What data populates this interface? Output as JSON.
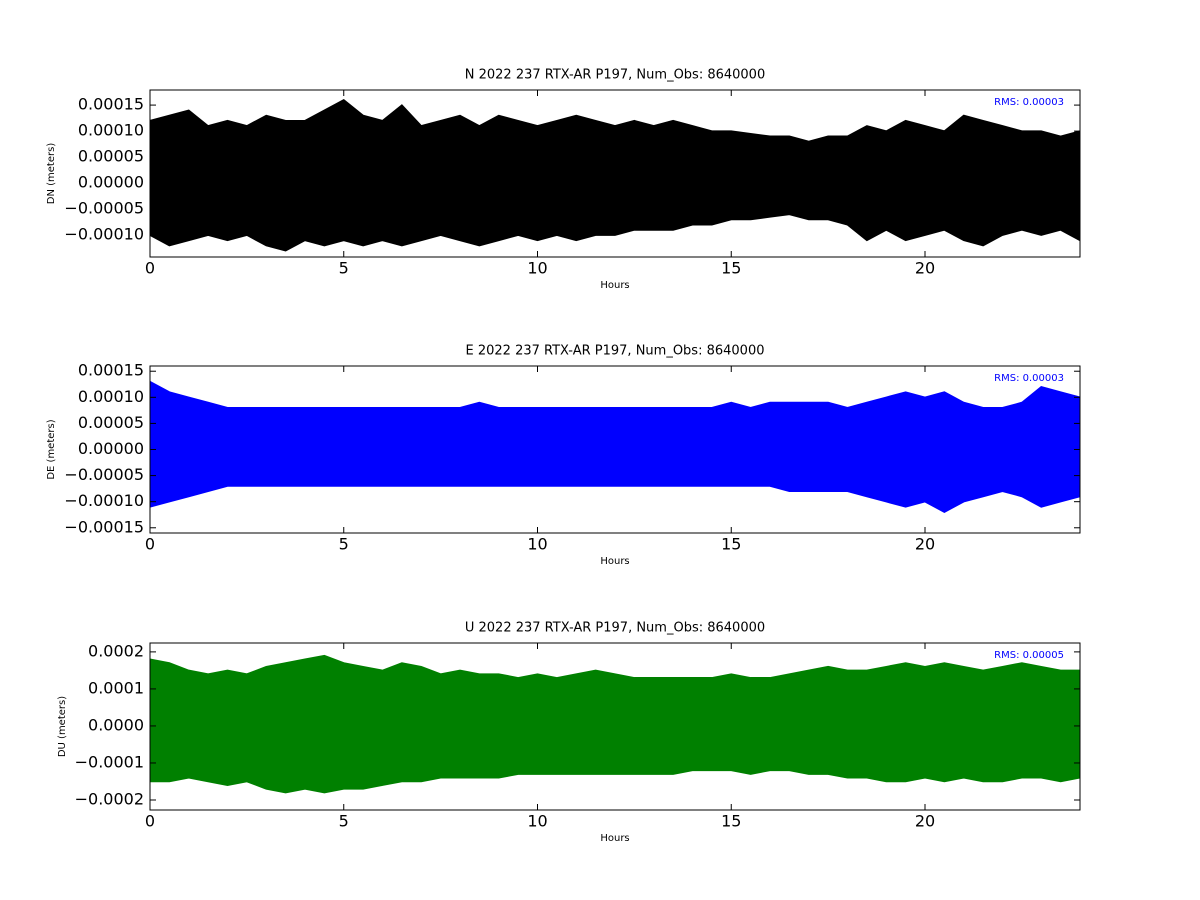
{
  "chart_data": [
    {
      "type": "area",
      "title": "N 2022 237 RTX-AR  P197, Num_Obs: 8640000",
      "xlabel": "Hours",
      "ylabel": "DN (meters)",
      "annotation": "RMS:  0.00003",
      "annotation_color": "#0000ff",
      "color": "#000000",
      "x": [
        0,
        0.5,
        1,
        1.5,
        2,
        2.5,
        3,
        3.5,
        4,
        4.5,
        5,
        5.5,
        6,
        6.5,
        7,
        7.5,
        8,
        8.5,
        9,
        9.5,
        10,
        10.5,
        11,
        11.5,
        12,
        12.5,
        13,
        13.5,
        14,
        14.5,
        15,
        15.5,
        16,
        16.5,
        17,
        17.5,
        18,
        18.5,
        19,
        19.5,
        20,
        20.5,
        21,
        21.5,
        22,
        22.5,
        23,
        23.5,
        24
      ],
      "upper": [
        0.00012,
        0.00013,
        0.00014,
        0.00011,
        0.00012,
        0.00011,
        0.00013,
        0.00012,
        0.00012,
        0.00014,
        0.00016,
        0.00013,
        0.00012,
        0.00015,
        0.00011,
        0.00012,
        0.00013,
        0.00011,
        0.00013,
        0.00012,
        0.00011,
        0.00012,
        0.00013,
        0.00012,
        0.00011,
        0.00012,
        0.00011,
        0.00012,
        0.00011,
        0.0001,
        0.0001,
        9.5e-05,
        9e-05,
        9e-05,
        8e-05,
        9e-05,
        9e-05,
        0.00011,
        0.0001,
        0.00012,
        0.00011,
        0.0001,
        0.00013,
        0.00012,
        0.00011,
        0.0001,
        0.0001,
        9e-05,
        0.0001
      ],
      "lower": [
        -0.0001,
        -0.00012,
        -0.00011,
        -0.0001,
        -0.00011,
        -0.0001,
        -0.00012,
        -0.00013,
        -0.00011,
        -0.00012,
        -0.00011,
        -0.00012,
        -0.00011,
        -0.00012,
        -0.00011,
        -0.0001,
        -0.00011,
        -0.00012,
        -0.00011,
        -0.0001,
        -0.00011,
        -0.0001,
        -0.00011,
        -0.0001,
        -0.0001,
        -9e-05,
        -9e-05,
        -9e-05,
        -8e-05,
        -8e-05,
        -7e-05,
        -7e-05,
        -6.5e-05,
        -6e-05,
        -7e-05,
        -7e-05,
        -8e-05,
        -0.00011,
        -9e-05,
        -0.00011,
        -0.0001,
        -9e-05,
        -0.00011,
        -0.00012,
        -0.0001,
        -9e-05,
        -0.0001,
        -9e-05,
        -0.00011
      ],
      "xlim": [
        0,
        24
      ],
      "ylim": [
        -0.000142,
        0.000179
      ],
      "xticks": [
        0,
        5,
        10,
        15,
        20
      ],
      "yticks": [
        {
          "value": -0.0001,
          "label": "−0.00010"
        },
        {
          "value": -5e-05,
          "label": "−0.00005"
        },
        {
          "value": 0,
          "label": "0.00000"
        },
        {
          "value": 5e-05,
          "label": "0.00005"
        },
        {
          "value": 0.0001,
          "label": "0.00010"
        },
        {
          "value": 0.00015,
          "label": "0.00015"
        }
      ]
    },
    {
      "type": "area",
      "title": "E 2022 237 RTX-AR  P197, Num_Obs: 8640000",
      "xlabel": "Hours",
      "ylabel": "DE (meters)",
      "annotation": "RMS:  0.00003",
      "annotation_color": "#0000ff",
      "color": "#0000ff",
      "x": [
        0,
        0.5,
        1,
        1.5,
        2,
        2.5,
        3,
        3.5,
        4,
        4.5,
        5,
        5.5,
        6,
        6.5,
        7,
        7.5,
        8,
        8.5,
        9,
        9.5,
        10,
        10.5,
        11,
        11.5,
        12,
        12.5,
        13,
        13.5,
        14,
        14.5,
        15,
        15.5,
        16,
        16.5,
        17,
        17.5,
        18,
        18.5,
        19,
        19.5,
        20,
        20.5,
        21,
        21.5,
        22,
        22.5,
        23,
        23.5,
        24
      ],
      "upper": [
        0.00013,
        0.00011,
        0.0001,
        9e-05,
        8e-05,
        8e-05,
        8e-05,
        8e-05,
        8e-05,
        8e-05,
        8e-05,
        8e-05,
        8e-05,
        8e-05,
        8e-05,
        8e-05,
        8e-05,
        9e-05,
        8e-05,
        8e-05,
        8e-05,
        8e-05,
        8e-05,
        8e-05,
        8e-05,
        8e-05,
        8e-05,
        8e-05,
        8e-05,
        8e-05,
        9e-05,
        8e-05,
        9e-05,
        9e-05,
        9e-05,
        9e-05,
        8e-05,
        9e-05,
        0.0001,
        0.00011,
        0.0001,
        0.00011,
        9e-05,
        8e-05,
        8e-05,
        9e-05,
        0.00012,
        0.00011,
        0.0001
      ],
      "lower": [
        -0.00011,
        -0.0001,
        -9e-05,
        -8e-05,
        -7e-05,
        -7e-05,
        -7e-05,
        -7e-05,
        -7e-05,
        -7e-05,
        -7e-05,
        -7e-05,
        -7e-05,
        -7e-05,
        -7e-05,
        -7e-05,
        -7e-05,
        -7e-05,
        -7e-05,
        -7e-05,
        -7e-05,
        -7e-05,
        -7e-05,
        -7e-05,
        -7e-05,
        -7e-05,
        -7e-05,
        -7e-05,
        -7e-05,
        -7e-05,
        -7e-05,
        -7e-05,
        -7e-05,
        -8e-05,
        -8e-05,
        -8e-05,
        -8e-05,
        -9e-05,
        -0.0001,
        -0.00011,
        -0.0001,
        -0.00012,
        -0.0001,
        -9e-05,
        -8e-05,
        -9e-05,
        -0.00011,
        -0.0001,
        -9e-05
      ],
      "xlim": [
        0,
        24
      ],
      "ylim": [
        -0.00016,
        0.00016
      ],
      "xticks": [
        0,
        5,
        10,
        15,
        20
      ],
      "yticks": [
        {
          "value": -0.00015,
          "label": "−0.00015"
        },
        {
          "value": -0.0001,
          "label": "−0.00010"
        },
        {
          "value": -5e-05,
          "label": "−0.00005"
        },
        {
          "value": 0,
          "label": "0.00000"
        },
        {
          "value": 5e-05,
          "label": "0.00005"
        },
        {
          "value": 0.0001,
          "label": "0.00010"
        },
        {
          "value": 0.00015,
          "label": "0.00015"
        }
      ]
    },
    {
      "type": "area",
      "title": "U 2022 237 RTX-AR  P197, Num_Obs: 8640000",
      "xlabel": "Hours",
      "ylabel": "DU (meters)",
      "annotation": "RMS:  0.00005",
      "annotation_color": "#0000ff",
      "color": "#008000",
      "x": [
        0,
        0.5,
        1,
        1.5,
        2,
        2.5,
        3,
        3.5,
        4,
        4.5,
        5,
        5.5,
        6,
        6.5,
        7,
        7.5,
        8,
        8.5,
        9,
        9.5,
        10,
        10.5,
        11,
        11.5,
        12,
        12.5,
        13,
        13.5,
        14,
        14.5,
        15,
        15.5,
        16,
        16.5,
        17,
        17.5,
        18,
        18.5,
        19,
        19.5,
        20,
        20.5,
        21,
        21.5,
        22,
        22.5,
        23,
        23.5,
        24
      ],
      "upper": [
        0.00018,
        0.00017,
        0.00015,
        0.00014,
        0.00015,
        0.00014,
        0.00016,
        0.00017,
        0.00018,
        0.00019,
        0.00017,
        0.00016,
        0.00015,
        0.00017,
        0.00016,
        0.00014,
        0.00015,
        0.00014,
        0.00014,
        0.00013,
        0.00014,
        0.00013,
        0.00014,
        0.00015,
        0.00014,
        0.00013,
        0.00013,
        0.00013,
        0.00013,
        0.00013,
        0.00014,
        0.00013,
        0.00013,
        0.00014,
        0.00015,
        0.00016,
        0.00015,
        0.00015,
        0.00016,
        0.00017,
        0.00016,
        0.00017,
        0.00016,
        0.00015,
        0.00016,
        0.00017,
        0.00016,
        0.00015,
        0.00015
      ],
      "lower": [
        -0.00015,
        -0.00015,
        -0.00014,
        -0.00015,
        -0.00016,
        -0.00015,
        -0.00017,
        -0.00018,
        -0.00017,
        -0.00018,
        -0.00017,
        -0.00017,
        -0.00016,
        -0.00015,
        -0.00015,
        -0.00014,
        -0.00014,
        -0.00014,
        -0.00014,
        -0.00013,
        -0.00013,
        -0.00013,
        -0.00013,
        -0.00013,
        -0.00013,
        -0.00013,
        -0.00013,
        -0.00013,
        -0.00012,
        -0.00012,
        -0.00012,
        -0.00013,
        -0.00012,
        -0.00012,
        -0.00013,
        -0.00013,
        -0.00014,
        -0.00014,
        -0.00015,
        -0.00015,
        -0.00014,
        -0.00015,
        -0.00014,
        -0.00015,
        -0.00015,
        -0.00014,
        -0.00014,
        -0.00015,
        -0.00014
      ],
      "xlim": [
        0,
        24
      ],
      "ylim": [
        -0.000227,
        0.000224
      ],
      "xticks": [
        0,
        5,
        10,
        15,
        20
      ],
      "yticks": [
        {
          "value": -0.0002,
          "label": "−0.0002"
        },
        {
          "value": -0.0001,
          "label": "−0.0001"
        },
        {
          "value": 0,
          "label": "0.0000"
        },
        {
          "value": 0.0001,
          "label": "0.0001"
        },
        {
          "value": 0.0002,
          "label": "0.0002"
        }
      ]
    }
  ]
}
